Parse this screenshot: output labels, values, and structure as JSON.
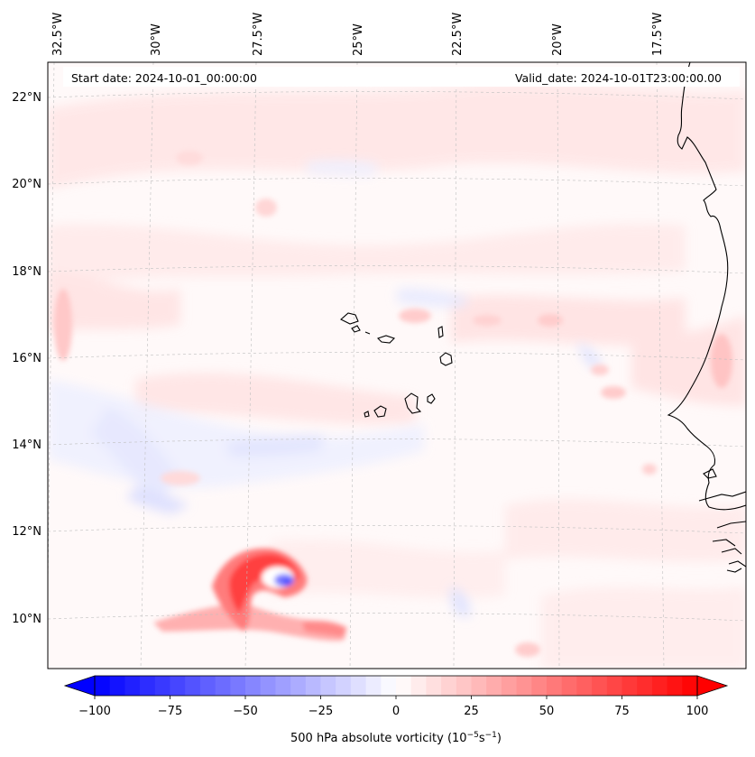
{
  "header": {
    "start_date": "Start date: 2024-10-01_00:00:00",
    "valid_date": "Valid_date: 2024-10-01T23:00:00.00"
  },
  "lon_labels": [
    "32.5°W",
    "30°W",
    "27.5°W",
    "25°W",
    "22.5°W",
    "20°W",
    "17.5°W"
  ],
  "lat_labels": [
    "22°N",
    "20°N",
    "18°N",
    "16°N",
    "14°N",
    "12°N",
    "10°N"
  ],
  "colorbar": {
    "label_main": "500 hPa absolute vorticity (10",
    "label_exp1": "−5",
    "label_mid": "s",
    "label_exp2": "−1",
    "label_end": ")",
    "ticks": [
      "−100",
      "−75",
      "−50",
      "−25",
      "0",
      "25",
      "50",
      "75",
      "100"
    ],
    "vmin": -100,
    "vmax": 100,
    "levels": 41,
    "colors": {
      "negative": "#0000ff",
      "zero": "#ffffff",
      "positive": "#ff0000"
    }
  },
  "colors": {
    "coastline": "#000000",
    "grid": "#bfbfbf",
    "frame": "#000000"
  }
}
